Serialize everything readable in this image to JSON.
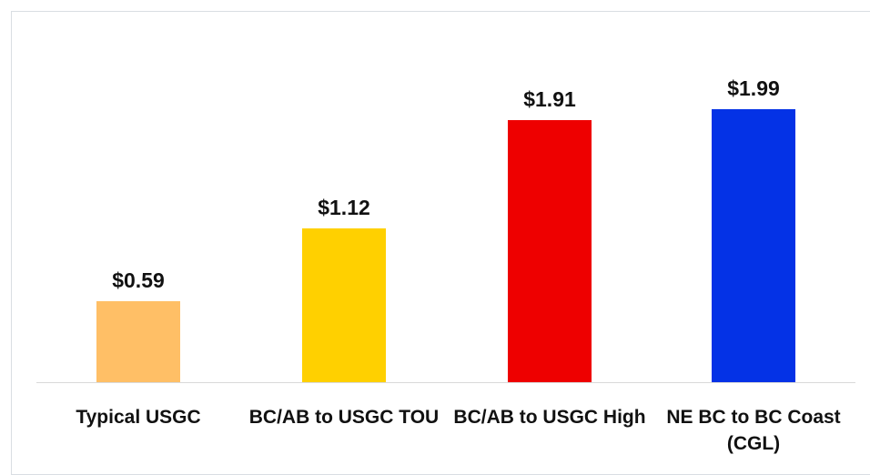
{
  "chart_data": {
    "type": "bar",
    "categories": [
      "Typical USGC",
      "BC/AB to USGC TOU",
      "BC/AB to USGC High",
      "NE BC to BC Coast (CGL)"
    ],
    "values": [
      0.59,
      1.12,
      1.91,
      1.99
    ],
    "value_labels": [
      "$0.59",
      "$1.12",
      "$1.91",
      "$1.99"
    ],
    "colors": [
      "#ffbf66",
      "#ffd000",
      "#ee0000",
      "#0432e6"
    ]
  }
}
